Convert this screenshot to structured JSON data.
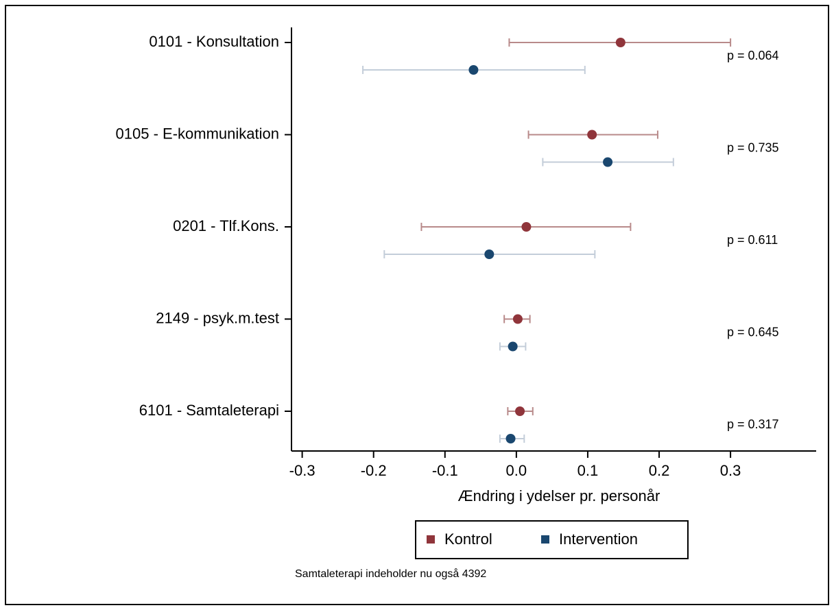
{
  "chart_data": {
    "type": "errorbar",
    "xlabel": "Ændring i ydelser pr. personår",
    "categories": [
      "0101 - Konsultation",
      "0105 - E-kommunikation",
      "0201 - Tlf.Kons.",
      "2149 - psyk.m.test",
      "6101 - Samtaleterapi"
    ],
    "series": [
      {
        "name": "Kontrol",
        "color": "#90353b",
        "ci_color": "#b88a8a",
        "values": [
          0.146,
          0.106,
          0.014,
          0.002,
          0.005
        ],
        "lower": [
          -0.01,
          0.017,
          -0.133,
          -0.017,
          -0.012
        ],
        "upper": [
          0.3,
          0.198,
          0.16,
          0.019,
          0.023
        ]
      },
      {
        "name": "Intervention",
        "color": "#1a476f",
        "ci_color": "#c3cdd9",
        "values": [
          -0.06,
          0.128,
          -0.038,
          -0.005,
          -0.008
        ],
        "lower": [
          -0.215,
          0.037,
          -0.185,
          -0.023,
          -0.023
        ],
        "upper": [
          0.096,
          0.22,
          0.11,
          0.013,
          0.011
        ]
      }
    ],
    "annotations": [
      "p = 0.064",
      "p = 0.735",
      "p = 0.611",
      "p = 0.645",
      "p = 0.317"
    ],
    "xlim": [
      -0.315,
      0.42
    ],
    "xticks": [
      -0.3,
      -0.2,
      -0.1,
      {
        "value": 0,
        "label": "0.0"
      },
      0.1,
      0.2,
      0.3
    ],
    "legend": "bottom",
    "note": "Samtaleterapi indeholder nu også 4392"
  }
}
